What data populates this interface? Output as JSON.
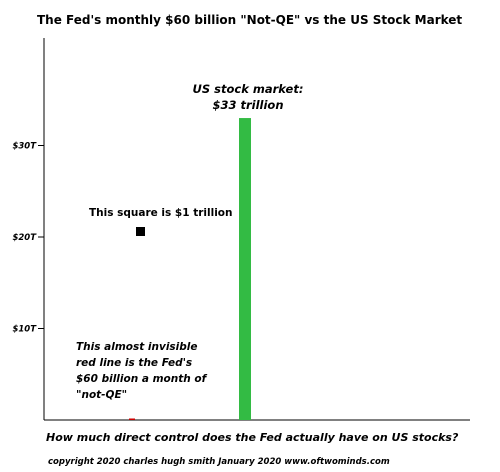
{
  "chart_data": {
    "type": "bar",
    "title": "The Fed's monthly $60 billion \"Not-QE\" vs the US Stock Market",
    "ylim": [
      0,
      42
    ],
    "yticks": [
      {
        "value": 10,
        "label": "$10T"
      },
      {
        "value": 20,
        "label": "$20T"
      },
      {
        "value": 30,
        "label": "$30T"
      }
    ],
    "bars": [
      {
        "category": "Fed not-QE (monthly)",
        "value": 0.06,
        "color": "#cc0000"
      },
      {
        "category": "US stock market",
        "value": 33,
        "color": "#33bb44"
      }
    ],
    "square_value_trillion": 1,
    "annotations": {
      "market_label_line1": "US stock market:",
      "market_label_line2": "$33 trillion",
      "square_label": "This square is $1 trillion",
      "fed_label_lines": [
        "This almost invisible",
        "red line is the Fed's",
        "$60 billion a month of",
        "\"not-QE\""
      ]
    },
    "question": "How much direct control does the Fed actually have on US stocks?",
    "footer": "copyright 2020   charles hugh smith   January 2020   www.oftwominds.com"
  }
}
